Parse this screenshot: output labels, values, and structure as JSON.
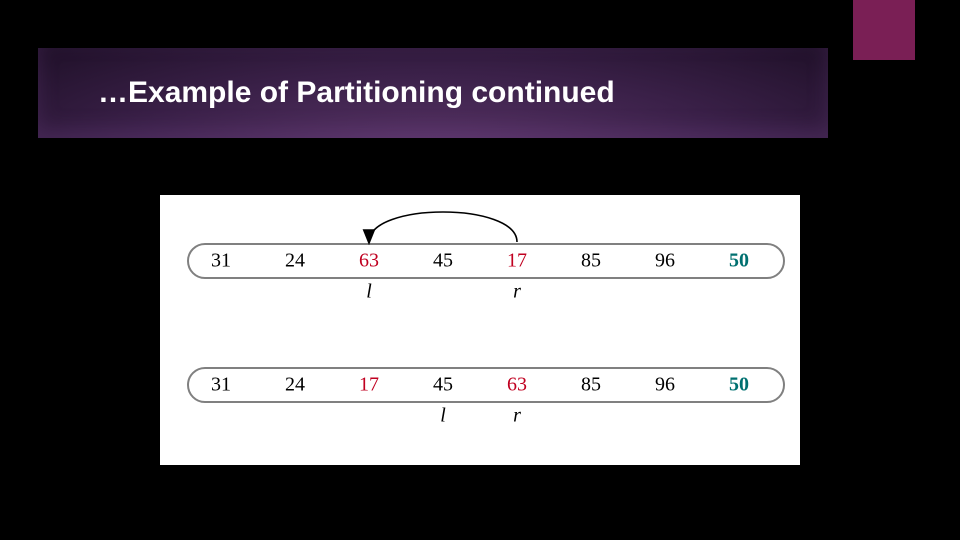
{
  "slide": {
    "title": "…Example of Partitioning continued",
    "background": "#000000",
    "title_bar": {
      "gradient_from": "#5a3568",
      "gradient_to": "#1f1028",
      "text_color": "#ffffff",
      "title_fontsize": 30
    },
    "accent_tab_color": "#7a1f55"
  },
  "diagram": {
    "type": "flowchart",
    "panel_bg": "#ffffff",
    "cell_font": "Times New Roman",
    "cell_fontsize": 20,
    "pointer_fontsize": 20,
    "capsule_stroke": "#808080",
    "capsule_stroke_width": 2,
    "arrow_color": "#000000",
    "black_text": "#000000",
    "red_text": "#c00020",
    "teal_text": "#007070",
    "rows": [
      {
        "values": [
          "31",
          "24",
          "63",
          "45",
          "17",
          "85",
          "96",
          "50"
        ],
        "colors": [
          "black",
          "black",
          "red",
          "black",
          "red",
          "black",
          "black",
          "teal"
        ],
        "bold": [
          false,
          false,
          false,
          false,
          false,
          false,
          false,
          true
        ],
        "l_index": 2,
        "r_index": 4,
        "has_swap_arrow": true,
        "swap_from": 4,
        "swap_to": 2
      },
      {
        "values": [
          "31",
          "24",
          "17",
          "45",
          "63",
          "85",
          "96",
          "50"
        ],
        "colors": [
          "black",
          "black",
          "red",
          "black",
          "red",
          "black",
          "black",
          "teal"
        ],
        "bold": [
          false,
          false,
          false,
          false,
          false,
          false,
          false,
          true
        ],
        "l_index": 3,
        "r_index": 4,
        "has_swap_arrow": false
      }
    ],
    "pointer_labels": {
      "l": "l",
      "r": "r"
    }
  }
}
